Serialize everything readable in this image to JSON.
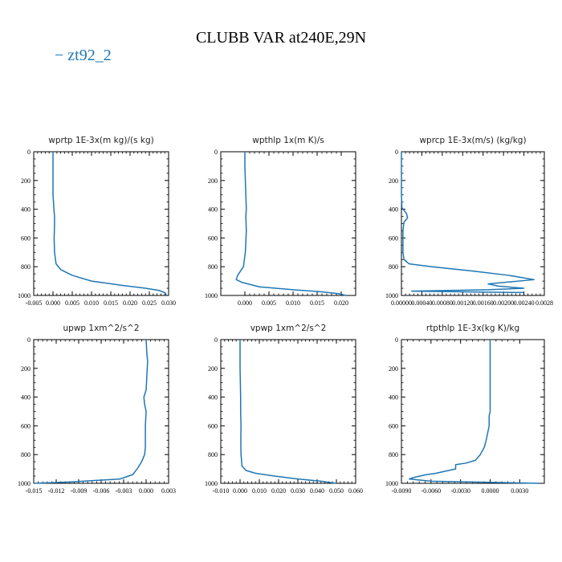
{
  "title": "CLUBB VAR at240E,29N",
  "legend": {
    "label": "zt92_2",
    "color": "#1f77b4"
  },
  "chart_data": [
    {
      "type": "line",
      "title": "wprtp  1E-3x(m kg)/(s kg)",
      "xlim": [
        -0.005,
        0.03
      ],
      "ylim": [
        1000,
        0
      ],
      "xticks": [
        -0.005,
        0,
        0.005,
        0.01,
        0.015,
        0.02,
        0.025,
        0.03
      ],
      "xtick_labels": [
        "-0.005",
        "0.000",
        "0.005",
        "0.010",
        "0.015",
        "0.020",
        "0.025",
        "0.030"
      ],
      "yticks": [
        0,
        200,
        400,
        600,
        800,
        1000
      ],
      "ytick_labels": [
        "0",
        "200",
        "400",
        "600",
        "800",
        "1000"
      ],
      "series": [
        {
          "name": "zt92_2",
          "x": [
            0,
            0,
            0,
            0.0003,
            0.0004,
            0.0004,
            0.0003,
            0.0004,
            0.0008,
            0.002,
            0.005,
            0.01,
            0.018,
            0.024,
            0.0275,
            0.029,
            0.0295
          ],
          "y": [
            0,
            100,
            300,
            420,
            450,
            500,
            600,
            700,
            780,
            820,
            860,
            900,
            930,
            950,
            965,
            980,
            1000
          ]
        }
      ]
    },
    {
      "type": "line",
      "title": "wpthlp  1x(m K)/s",
      "xlim": [
        -0.005,
        0.023
      ],
      "ylim": [
        1000,
        0
      ],
      "xticks": [
        0,
        0.005,
        0.01,
        0.015,
        0.02
      ],
      "xtick_labels": [
        "0.000",
        "0.005",
        "0.010",
        "0.015",
        "0.020"
      ],
      "yticks": [
        0,
        200,
        400,
        600,
        800,
        1000
      ],
      "ytick_labels": [
        "0",
        "200",
        "400",
        "600",
        "800",
        "1000"
      ],
      "series": [
        {
          "name": "zt92_2",
          "x": [
            0,
            0,
            0.0002,
            0.0003,
            0.0002,
            0.0003,
            0.0001,
            -0.0003,
            -0.0015,
            -0.0018,
            -0.0005,
            0.003,
            0.01,
            0.016,
            0.0195,
            0.021
          ],
          "y": [
            0,
            100,
            300,
            400,
            450,
            550,
            700,
            800,
            860,
            890,
            910,
            940,
            960,
            975,
            988,
            1000
          ]
        }
      ]
    },
    {
      "type": "line",
      "title": "wprcp  1E-3x(m/s) (kg/kg)",
      "xlim": [
        0,
        0.0028
      ],
      "ylim": [
        1000,
        0
      ],
      "xticks": [
        0,
        0.0004,
        0.0008,
        0.0012,
        0.0016,
        0.002,
        0.0024,
        0.0028
      ],
      "xtick_labels": [
        "0.00000",
        "0.00040",
        "0.00080",
        "0.00120",
        "0.00160",
        "0.00200",
        "0.00240",
        "0.0028"
      ],
      "yticks": [
        0,
        200,
        400,
        600,
        800,
        1000
      ],
      "ytick_labels": [
        "0",
        "200",
        "400",
        "600",
        "800",
        "1000"
      ],
      "series": [
        {
          "name": "zt92_2",
          "x": [
            0,
            0,
            1e-05,
            0.0001,
            0.00012,
            5e-05,
            3e-05,
            3e-05,
            5e-05,
            0.00015,
            0.0006,
            0.0014,
            0.0021,
            0.0026,
            0.0017,
            0.0019,
            0.0024,
            0.0017,
            0.0002,
            0.0024
          ],
          "y": [
            0,
            300,
            390,
            430,
            460,
            490,
            550,
            700,
            750,
            780,
            800,
            830,
            860,
            890,
            920,
            935,
            950,
            960,
            970,
            980
          ]
        }
      ]
    },
    {
      "type": "line",
      "title": "upwp   1xm^2/s^2",
      "xlim": [
        -0.015,
        0.003
      ],
      "ylim": [
        1000,
        0
      ],
      "xticks": [
        -0.015,
        -0.012,
        -0.009,
        -0.006,
        -0.003,
        0,
        0.003
      ],
      "xtick_labels": [
        "-0.015",
        "-0.012",
        "-0.009",
        "-0.006",
        "-0.003",
        "0.000",
        "0.003"
      ],
      "yticks": [
        0,
        200,
        400,
        600,
        800,
        1000
      ],
      "ytick_labels": [
        "0",
        "200",
        "400",
        "600",
        "800",
        "1000"
      ],
      "series": [
        {
          "name": "zt92_2",
          "x": [
            0,
            0.0001,
            0.0002,
            0.0001,
            0,
            -0.0003,
            -0.0002,
            0,
            -0.0001,
            -0.0001,
            -0.0002,
            -0.0006,
            -0.0012,
            -0.0018,
            -0.0035,
            -0.01,
            -0.015
          ],
          "y": [
            0,
            100,
            150,
            250,
            350,
            400,
            450,
            500,
            600,
            750,
            800,
            850,
            900,
            940,
            970,
            990,
            1000
          ]
        }
      ]
    },
    {
      "type": "line",
      "title": "vpwp   1xm^2/s^2",
      "xlim": [
        -0.01,
        0.06
      ],
      "ylim": [
        1000,
        0
      ],
      "xticks": [
        -0.01,
        0,
        0.01,
        0.02,
        0.03,
        0.04,
        0.05,
        0.06
      ],
      "xtick_labels": [
        "-0.010",
        "0.000",
        "0.010",
        "0.020",
        "0.030",
        "0.040",
        "0.050",
        "0.060"
      ],
      "yticks": [
        0,
        200,
        400,
        600,
        800,
        1000
      ],
      "ytick_labels": [
        "0",
        "200",
        "400",
        "600",
        "800",
        "1000"
      ],
      "series": [
        {
          "name": "zt92_2",
          "x": [
            0,
            0,
            0.0003,
            0.0003,
            0.0005,
            0.0004,
            0.0005,
            0.001,
            0.003,
            0.008,
            0.018,
            0.03,
            0.042,
            0.05
          ],
          "y": [
            0,
            200,
            400,
            500,
            600,
            700,
            800,
            880,
            910,
            930,
            950,
            970,
            985,
            1000
          ]
        }
      ]
    },
    {
      "type": "line",
      "title": "rtpthlp  1E-3x(kg K)/kg",
      "xlim": [
        -0.009,
        0.0055
      ],
      "ylim": [
        1000,
        0
      ],
      "xticks": [
        -0.009,
        -0.006,
        -0.003,
        0,
        0.003
      ],
      "xtick_labels": [
        "-0.0090",
        "-0.0060",
        "-0.0030",
        "0.0000",
        "0.0030"
      ],
      "yticks": [
        0,
        200,
        400,
        600,
        800,
        1000
      ],
      "ytick_labels": [
        "0",
        "200",
        "400",
        "600",
        "800",
        "1000"
      ],
      "series": [
        {
          "name": "zt92_2",
          "x": [
            0,
            0,
            -0.0001,
            -0.0001,
            -0.0004,
            -0.0006,
            -0.001,
            -0.0015,
            -0.0025,
            -0.0035,
            -0.0035,
            -0.0045,
            -0.0055,
            -0.0065,
            -0.0078,
            -0.0082,
            -0.006,
            0.005
          ],
          "y": [
            0,
            500,
            530,
            600,
            700,
            750,
            800,
            840,
            860,
            870,
            900,
            915,
            930,
            940,
            960,
            970,
            985,
            1000
          ]
        }
      ]
    }
  ]
}
